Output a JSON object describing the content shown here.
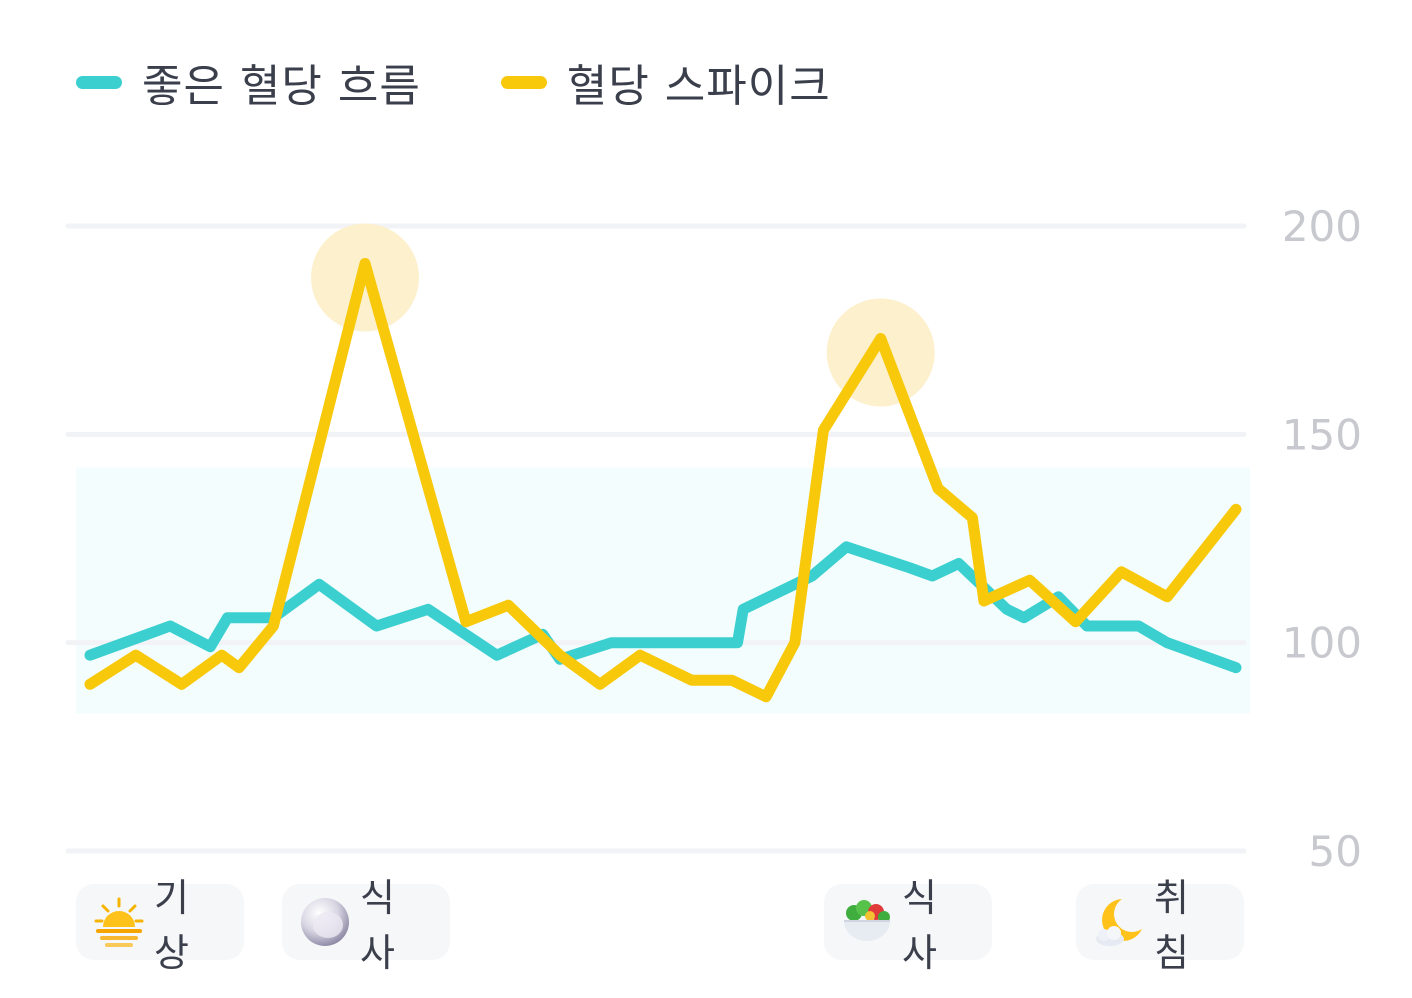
{
  "legend": {
    "good": {
      "label": "좋은 혈당 흐름",
      "color": "#3ccfcf"
    },
    "spike": {
      "label": "혈당 스파이크",
      "color": "#f8c80b"
    }
  },
  "chart_data": {
    "type": "line",
    "ylim": [
      50,
      200
    ],
    "yticks": [
      200,
      150,
      100,
      50
    ],
    "target_band": [
      83,
      142
    ],
    "x_range": [
      0,
      100
    ],
    "series": [
      {
        "name": "좋은 혈당 흐름",
        "color": "#3ccfcf",
        "points": [
          [
            0,
            97
          ],
          [
            7,
            104
          ],
          [
            10.5,
            99
          ],
          [
            12,
            106
          ],
          [
            16,
            106
          ],
          [
            20,
            114
          ],
          [
            25,
            104
          ],
          [
            29.5,
            108
          ],
          [
            35.5,
            97
          ],
          [
            39.5,
            102
          ],
          [
            41,
            96
          ],
          [
            45.5,
            100
          ],
          [
            50,
            100
          ],
          [
            54.5,
            100
          ],
          [
            56.5,
            100
          ],
          [
            57,
            108
          ],
          [
            63,
            116
          ],
          [
            66,
            123
          ],
          [
            71.5,
            118
          ],
          [
            73.5,
            116
          ],
          [
            75.8,
            119
          ],
          [
            80,
            108
          ],
          [
            81.5,
            106
          ],
          [
            84.5,
            111
          ],
          [
            87,
            104
          ],
          [
            91.5,
            104
          ],
          [
            94,
            100
          ],
          [
            100,
            94
          ]
        ]
      },
      {
        "name": "혈당 스파이크",
        "color": "#f8c80b",
        "points": [
          [
            0,
            90
          ],
          [
            4,
            97
          ],
          [
            8,
            90
          ],
          [
            11.5,
            97
          ],
          [
            13,
            94
          ],
          [
            16,
            104
          ],
          [
            24,
            191
          ],
          [
            32.8,
            105
          ],
          [
            36.5,
            109
          ],
          [
            41,
            97
          ],
          [
            44.5,
            90
          ],
          [
            48,
            97
          ],
          [
            52.5,
            91
          ],
          [
            56,
            91
          ],
          [
            59,
            87
          ],
          [
            61.5,
            100
          ],
          [
            64,
            151
          ],
          [
            69,
            173
          ],
          [
            74,
            137
          ],
          [
            77,
            130
          ],
          [
            78,
            110
          ],
          [
            82,
            115
          ],
          [
            86,
            105
          ],
          [
            90,
            117
          ],
          [
            94,
            111
          ],
          [
            100,
            132
          ]
        ]
      }
    ],
    "highlights": [
      {
        "x": 24,
        "y": 191
      },
      {
        "x": 69,
        "y": 173
      }
    ]
  },
  "events": [
    {
      "label": "기상",
      "icon": "sunrise-icon"
    },
    {
      "label": "식사",
      "icon": "plate-icon"
    },
    {
      "label": "식사",
      "icon": "salad-bowl-icon"
    },
    {
      "label": "취침",
      "icon": "moon-icon"
    }
  ]
}
